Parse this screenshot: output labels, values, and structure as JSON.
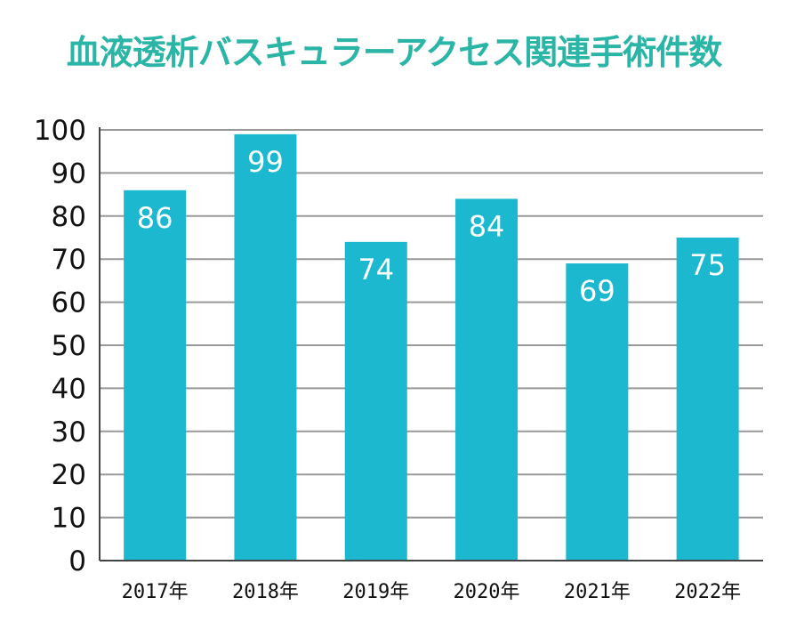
{
  "chart_data": {
    "type": "bar",
    "title": "血液透析バスキュラーアクセス関連手術件数",
    "categories": [
      "2017年",
      "2018年",
      "2019年",
      "2020年",
      "2021年",
      "2022年"
    ],
    "values": [
      86,
      99,
      74,
      84,
      69,
      75
    ],
    "ylim": [
      0,
      100
    ],
    "yticks": [
      "0",
      "10",
      "20",
      "30",
      "40",
      "50",
      "60",
      "70",
      "80",
      "90",
      "100"
    ],
    "xlabel": "",
    "ylabel": "",
    "grid": true,
    "data_labels": true,
    "bar_color": "#1cb8d0",
    "grid_color": "#999999",
    "title_color": "#2bb5a6"
  }
}
